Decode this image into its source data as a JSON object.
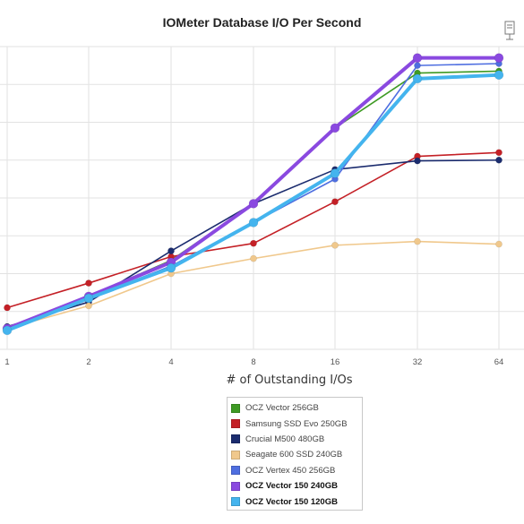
{
  "chart_data": {
    "type": "line",
    "title": "IOMeter Database I/O Per Second",
    "xlabel": "# of Outstanding I/Os",
    "ylabel": "",
    "categories": [
      "1",
      "2",
      "4",
      "8",
      "16",
      "32",
      "64"
    ],
    "ylim": [
      0,
      8
    ],
    "grid": true,
    "legend_position": "bottom",
    "series": [
      {
        "name": "OCZ Vector 256GB",
        "color": "#3e9a24",
        "values": [
          0.55,
          1.4,
          2.35,
          3.85,
          5.85,
          7.3,
          7.35
        ],
        "emphasis": false
      },
      {
        "name": "Samsung SSD Evo 250GB",
        "color": "#c42026",
        "values": [
          1.1,
          1.75,
          2.45,
          2.8,
          3.9,
          5.1,
          5.2
        ],
        "emphasis": false
      },
      {
        "name": "Crucial M500 480GB",
        "color": "#1b2c6e",
        "values": [
          0.6,
          1.25,
          2.6,
          3.85,
          4.75,
          4.98,
          5.0
        ],
        "emphasis": false
      },
      {
        "name": "Seagate 600 SSD 240GB",
        "color": "#f0c88c",
        "values": [
          0.55,
          1.15,
          2.0,
          2.4,
          2.75,
          2.85,
          2.78
        ],
        "emphasis": false
      },
      {
        "name": "OCZ Vertex 450 256GB",
        "color": "#4e6ee0",
        "values": [
          0.55,
          1.35,
          2.2,
          3.35,
          4.5,
          7.5,
          7.55
        ],
        "emphasis": false
      },
      {
        "name": "OCZ Vector 150 240GB",
        "color": "#8a49e0",
        "values": [
          0.55,
          1.4,
          2.3,
          3.85,
          5.85,
          7.7,
          7.7
        ],
        "emphasis": true
      },
      {
        "name": "OCZ Vector 150 120GB",
        "color": "#44b4ee",
        "values": [
          0.5,
          1.35,
          2.15,
          3.35,
          4.65,
          7.15,
          7.25
        ],
        "emphasis": true
      }
    ]
  }
}
